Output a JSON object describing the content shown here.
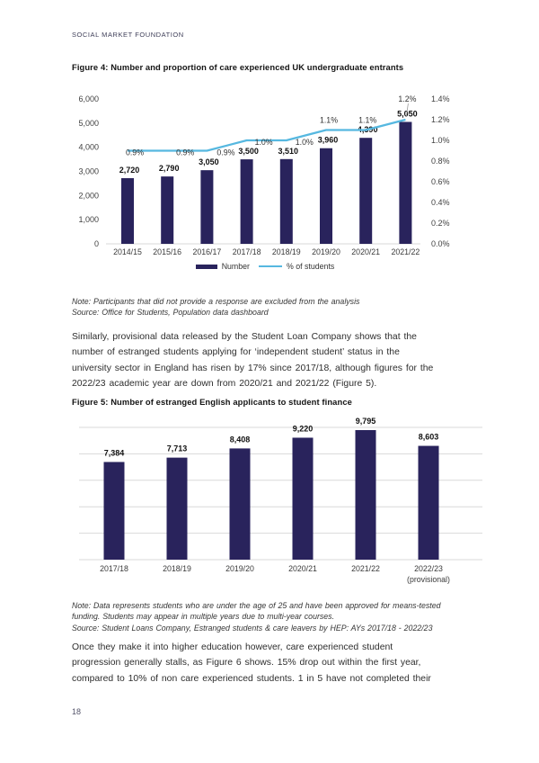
{
  "page": {
    "header": "SOCIAL MARKET FOUNDATION",
    "page_number": "18"
  },
  "figure4": {
    "title": "Figure 4: Number and proportion of care experienced UK undergraduate entrants",
    "note_lines": [
      "Note: Participants that did not provide a response are excluded from the analysis",
      "Source: Office for Students, Population data dashboard"
    ]
  },
  "paragraph1": {
    "lines": [
      "Similarly, provisional data released by the Student Loan Company shows that the",
      "number of estranged students applying for ‘independent student’ status in the",
      "university sector in England has risen by 17% since 2017/18, although figures for the",
      "2022/23 academic year are down from 2020/21 and 2021/22 (Figure 5)."
    ]
  },
  "figure5": {
    "title": "Figure 5: Number of estranged English applicants to student finance",
    "note_lines": [
      "Note: Data represents students who are under the age of 25 and have been approved for means-tested",
      "funding. Students may appear in multiple years due to multi-year courses.",
      "Source: Student Loans Company, Estranged students & care leavers by HEP: AYs 2017/18 - 2022/23"
    ]
  },
  "paragraph2": {
    "lines": [
      "Once they make it into higher education however, care experienced student",
      "progression generally stalls, as Figure 6 shows. 15% drop out within the first year,",
      "compared to 10% of non care experienced students. 1 in 5 have not completed their"
    ]
  },
  "colors": {
    "bar_navy": "#29235c",
    "line_blue": "#56b8e0",
    "grid_gray": "#d9d9d9",
    "tick_text": "#404040",
    "data_label": "#101010"
  },
  "chart_data": [
    {
      "type": "bar+line",
      "title": "Figure 4: Number and proportion of care experienced UK undergraduate entrants",
      "categories": [
        "2014/15",
        "2015/16",
        "2016/17",
        "2017/18",
        "2018/19",
        "2019/20",
        "2020/21",
        "2021/22"
      ],
      "series": [
        {
          "name": "Number",
          "type": "bar",
          "color": "#29235c",
          "values": [
            2720,
            2790,
            3050,
            3500,
            3510,
            3960,
            4390,
            5050
          ],
          "labels": [
            "2,720",
            "2,790",
            "3,050",
            "3,500",
            "3,510",
            "3,960",
            "4,390",
            "5,050"
          ]
        },
        {
          "name": "% of students",
          "type": "line",
          "color": "#56b8e0",
          "values": [
            0.9,
            0.9,
            0.9,
            1.0,
            1.0,
            1.1,
            1.1,
            1.2
          ],
          "labels": [
            "0.9%",
            "0.9%",
            "0.9%",
            "1.0%",
            "1.0%",
            "1.1%",
            "1.1%",
            "1.2%"
          ]
        }
      ],
      "left_axis": {
        "min": 0,
        "max": 6000,
        "ticks": [
          "0",
          "1,000",
          "2,000",
          "3,000",
          "4,000",
          "5,000",
          "6,000"
        ]
      },
      "right_axis": {
        "min": 0,
        "max": 1.4,
        "ticks": [
          "0.0%",
          "0.2%",
          "0.4%",
          "0.6%",
          "0.8%",
          "1.0%",
          "1.2%",
          "1.4%"
        ]
      },
      "legend": [
        "Number",
        "% of students"
      ],
      "legend_position": "bottom-center",
      "grid": false
    },
    {
      "type": "bar",
      "title": "Figure 5: Number of estranged English applicants to student finance",
      "categories": [
        "2017/18",
        "2018/19",
        "2019/20",
        "2020/21",
        "2021/22",
        "2022/23"
      ],
      "last_category_suffix": "(provisional)",
      "values": [
        7384,
        7713,
        8408,
        9220,
        9795,
        8603
      ],
      "labels": [
        "7,384",
        "7,713",
        "8,408",
        "9,220",
        "9,795",
        "8,603"
      ],
      "bar_color": "#29235c",
      "ylim": [
        0,
        10000
      ],
      "gridline_step": 2000,
      "grid": true,
      "y_tick_labels_visible": false
    }
  ]
}
